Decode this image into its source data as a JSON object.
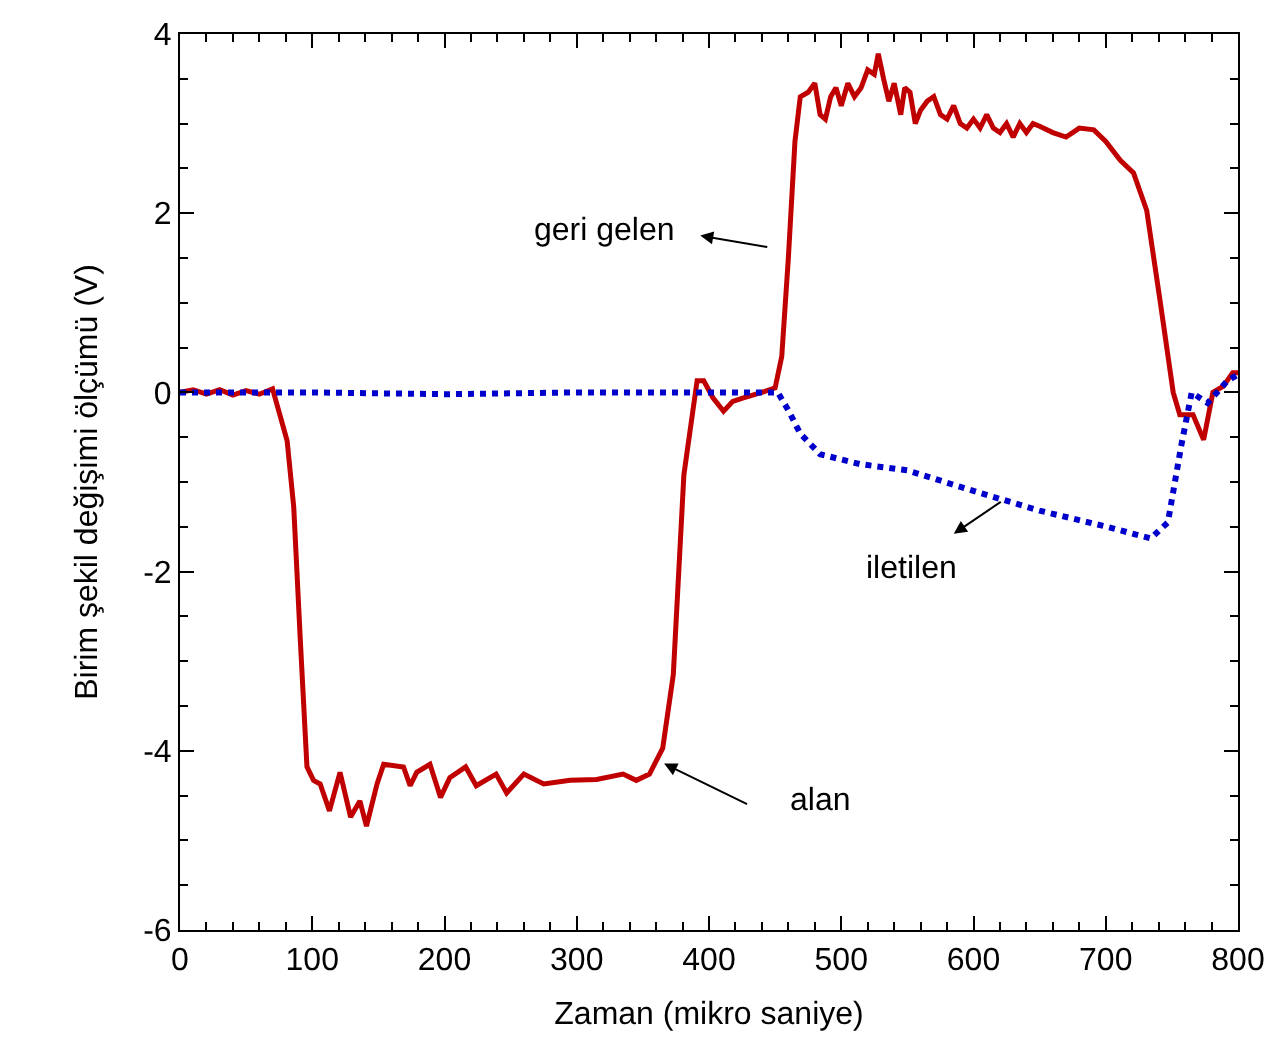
{
  "chart_data": {
    "type": "line",
    "xlabel": "Zaman (mikro saniye)",
    "ylabel": "Birim şekil değişimi ölçümü (V)",
    "xlim": [
      0,
      800
    ],
    "xticks": [
      0,
      100,
      200,
      300,
      400,
      500,
      600,
      700,
      800
    ],
    "ylim": [
      -6,
      4
    ],
    "yticks": [
      -6,
      -4,
      -2,
      0,
      2,
      4
    ],
    "grid": false,
    "marker": "none",
    "series": [
      {
        "color": "#c00000",
        "line_style": "solid",
        "x": [
          0,
          10,
          20,
          30,
          40,
          50,
          60,
          70,
          81,
          86,
          91,
          96,
          101,
          106,
          113,
          121,
          129,
          136,
          141,
          149,
          154,
          169,
          174,
          179,
          189,
          197,
          204,
          216,
          224,
          239,
          247,
          260,
          275,
          295,
          315,
          335,
          345,
          355,
          365,
          373,
          381,
          391,
          396,
          403,
          411,
          418,
          426,
          440,
          450,
          455,
          460,
          465,
          469,
          475,
          480,
          484,
          488,
          492,
          496,
          500,
          505,
          510,
          515,
          520,
          525,
          528,
          532,
          536,
          540,
          545,
          548,
          552,
          556,
          560,
          565,
          570,
          575,
          580,
          585,
          590,
          595,
          600,
          605,
          610,
          615,
          620,
          625,
          630,
          635,
          640,
          645,
          650,
          660,
          670,
          680,
          691,
          700,
          711,
          721,
          731,
          741,
          751,
          756,
          766,
          774,
          781,
          789,
          796,
          800
        ],
        "values": [
          0,
          0.03,
          -0.02,
          0.03,
          -0.03,
          0.02,
          -0.02,
          0.04,
          -0.54,
          -1.28,
          -2.77,
          -4.18,
          -4.33,
          -4.37,
          -4.67,
          -4.24,
          -4.74,
          -4.56,
          -4.84,
          -4.37,
          -4.15,
          -4.18,
          -4.39,
          -4.24,
          -4.15,
          -4.52,
          -4.3,
          -4.18,
          -4.39,
          -4.26,
          -4.47,
          -4.26,
          -4.37,
          -4.33,
          -4.32,
          -4.26,
          -4.33,
          -4.26,
          -3.97,
          -3.15,
          -0.92,
          0.13,
          0.13,
          -0.06,
          -0.21,
          -0.1,
          -0.06,
          0,
          0.05,
          0.4,
          1.5,
          2.8,
          3.3,
          3.35,
          3.45,
          3.1,
          3.05,
          3.3,
          3.4,
          3.2,
          3.45,
          3.3,
          3.4,
          3.6,
          3.55,
          3.78,
          3.5,
          3.25,
          3.45,
          3.1,
          3.4,
          3.35,
          3.0,
          3.15,
          3.25,
          3.3,
          3.1,
          3.05,
          3.2,
          3.0,
          2.95,
          3.05,
          2.95,
          3.1,
          2.95,
          2.9,
          3.0,
          2.85,
          3.0,
          2.9,
          3.0,
          2.97,
          2.9,
          2.85,
          2.95,
          2.93,
          2.8,
          2.59,
          2.45,
          2.03,
          1.03,
          0,
          -0.25,
          -0.25,
          -0.53,
          0,
          0.07,
          0.22,
          0.22
        ]
      },
      {
        "color": "#0000cc",
        "line_style": "dotted",
        "x": [
          0,
          100,
          200,
          300,
          400,
          452,
          460,
          469,
          484,
          514,
          550,
          600,
          650,
          701,
          734,
          747,
          757,
          765,
          777,
          792,
          800
        ],
        "values": [
          0,
          0,
          -0.02,
          0,
          0,
          0,
          -0.2,
          -0.46,
          -0.69,
          -0.8,
          -0.87,
          -1.1,
          -1.32,
          -1.5,
          -1.63,
          -1.45,
          -0.6,
          0,
          -0.12,
          0.13,
          0.2
        ]
      }
    ],
    "annotations": [
      "geri gelen",
      "iletilen",
      "alan"
    ]
  }
}
